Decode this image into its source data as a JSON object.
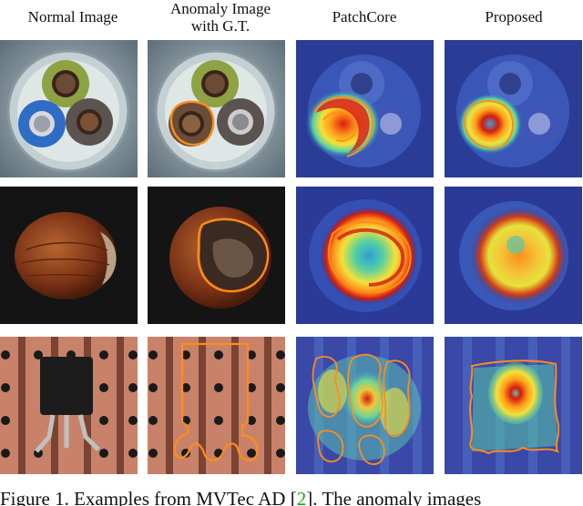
{
  "columns": [
    {
      "id": "normal",
      "title": "Normal Image",
      "title_line2": ""
    },
    {
      "id": "anomaly",
      "title": "Anomaly Image",
      "title_line2": "with G.T."
    },
    {
      "id": "patchcore",
      "title": "PatchCore",
      "title_line2": ""
    },
    {
      "id": "proposed",
      "title": "Proposed",
      "title_line2": ""
    }
  ],
  "rows": [
    {
      "id": "cable"
    },
    {
      "id": "hazelnut"
    },
    {
      "id": "transistor"
    }
  ],
  "caption": {
    "prefix": "Figure 1.  Examples from MVTec AD [",
    "ref": "2",
    "suffix": "].  The anomaly images"
  },
  "colors": {
    "ground_truth_outline": "#ff8c1a",
    "heatmap_low": "#2a3d9c",
    "heatmap_high": "#d21a10",
    "reference_link": "#1aa51a"
  }
}
